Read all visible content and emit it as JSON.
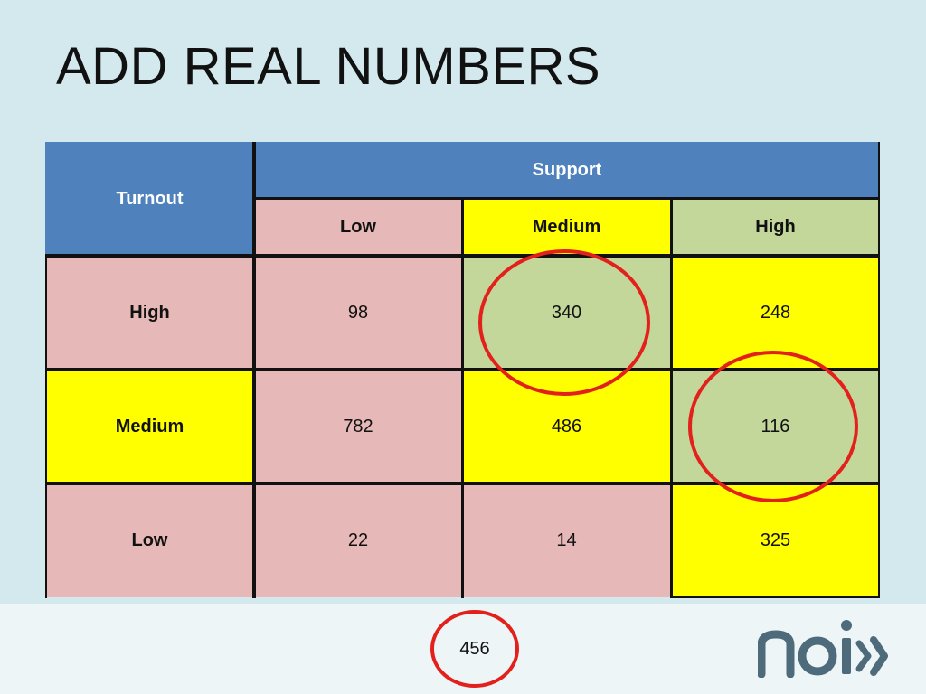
{
  "slide": {
    "title": "ADD REAL NUMBERS"
  },
  "table": {
    "corner_label": "Turnout",
    "group_header": "Support",
    "columns": [
      "Low",
      "Medium",
      "High"
    ],
    "rows": [
      {
        "label": "High",
        "values": [
          "98",
          "340",
          "248"
        ]
      },
      {
        "label": "Medium",
        "values": [
          "782",
          "486",
          "116"
        ]
      },
      {
        "label": "Low",
        "values": [
          "22",
          "14",
          "325"
        ]
      }
    ]
  },
  "highlighted_cells": [
    "High/Medium",
    "Medium/High"
  ],
  "footer": {
    "total": "456",
    "logo_alt": "noi"
  },
  "colors": {
    "background": "#d3e9ee",
    "header_blue": "#4f81bd",
    "pink": "#e6b8b7",
    "yellow": "#ffff00",
    "green": "#c4d79b",
    "circle": "#e3211c",
    "logo": "#4e6b7c"
  }
}
